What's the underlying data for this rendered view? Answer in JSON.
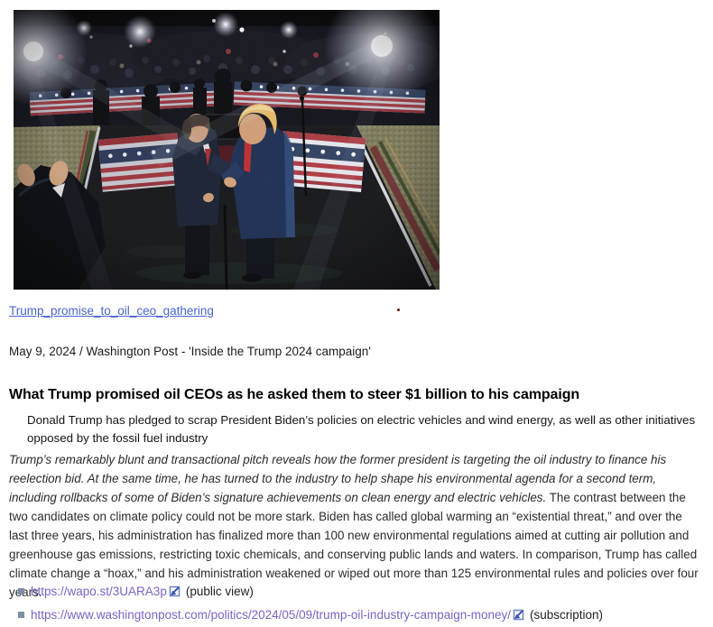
{
  "colors": {
    "link_blue": "#4a63cf",
    "link_visited": "#7b63c6",
    "bullet_square": "#7d8fa6",
    "body_text": "#2b2b2b",
    "headline_text": "#000000",
    "page_bg": "#ffffff"
  },
  "photo": {
    "description": "Dark rally stage: Donald Trump shaking hands with a man in a suit, crowd and stage lights behind, American flag bunting on barriers, man clapping at lower left",
    "caption_link": "Trump_promise_to_oil_ceo_gathering"
  },
  "byline": "May 9, 2024 / Washington Post - 'Inside the Trump 2024 campaign'",
  "headline": "What Trump promised oil CEOs as he asked them to steer $1 billion to his campaign",
  "deck": "Donald Trump has pledged to scrap President Biden’s policies on electric vehicles and wind energy, as well as other initiatives opposed by the fossil fuel industry",
  "body_segments": [
    {
      "italic": true,
      "text": "Trump’s remarkably blunt and transactional pitch reveals how the former president is targeting the oil industry to finance his reelection bid. At the same time, he has turned to the industry to help shape his environmental agenda for a second term, including rollbacks of some of Biden’s signature achievements on clean energy and electric vehicles."
    },
    {
      "italic": false,
      "text": " The contrast between the two candidates on climate policy could not be more stark. Biden has called global warming an “existential threat,” and over the last three years, his administration has finalized more than 100 new environmental regulations aimed at cutting air pollution and greenhouse gas emissions, restricting toxic chemicals, and conserving public lands and waters. In comparison, Trump has called climate change a “hoax,” and his administration weakened or wiped out more than 125 environmental rules and policies over four years."
    }
  ],
  "links": [
    {
      "url": "https://wapo.st/3UARA3p",
      "note": "(public view)"
    },
    {
      "url": "https://www.washingtonpost.com/politics/2024/05/09/trump-oil-industry-campaign-money/",
      "note": "(subscription)"
    }
  ]
}
